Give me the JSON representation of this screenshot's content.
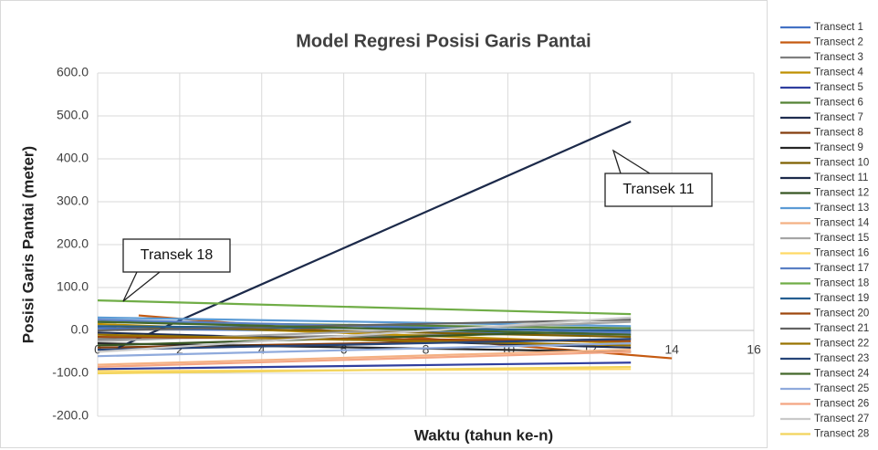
{
  "chart_data": {
    "type": "line",
    "title": "Model Regresi Posisi Garis Pantai",
    "x_label": "Waktu (tahun ke-n)",
    "y_label": "Posisi Garis Pantai (meter)",
    "annotations": [
      "Transek 11",
      "Transek 18"
    ],
    "xlim": [
      0,
      16
    ],
    "xticks": [
      0,
      2,
      4,
      6,
      8,
      10,
      12,
      14,
      16
    ],
    "ylim": [
      -200,
      600
    ],
    "yticks": [
      {
        "value": -200,
        "label": "-200.0"
      },
      {
        "value": -100,
        "label": "-100.0"
      },
      {
        "value": 0,
        "label": "0.0"
      },
      {
        "value": 100,
        "label": "100.0"
      },
      {
        "value": 200,
        "label": "200.0"
      },
      {
        "value": 300,
        "label": "300.0"
      },
      {
        "value": 400,
        "label": "400.0"
      },
      {
        "value": 500,
        "label": "500.0"
      },
      {
        "value": 600,
        "label": "600.0"
      }
    ],
    "grid": true,
    "legend": "right",
    "series": [
      {
        "name": "Transect 1",
        "color": "#4472c4",
        "x": [
          0,
          13
        ],
        "values": [
          5,
          -10
        ]
      },
      {
        "name": "Transect 2",
        "color": "#c55a11",
        "x": [
          1,
          14
        ],
        "values": [
          35,
          -65
        ]
      },
      {
        "name": "Transect 3",
        "color": "#7f7f7f",
        "x": [
          0,
          13
        ],
        "values": [
          -20,
          -5
        ]
      },
      {
        "name": "Transect 4",
        "color": "#bf9000",
        "x": [
          0,
          13
        ],
        "values": [
          15,
          -30
        ]
      },
      {
        "name": "Transect 5",
        "color": "#2f3e9e",
        "x": [
          0,
          13
        ],
        "values": [
          -90,
          -75
        ]
      },
      {
        "name": "Transect 6",
        "color": "#548235",
        "x": [
          0,
          13
        ],
        "values": [
          20,
          5
        ]
      },
      {
        "name": "Transect 7",
        "color": "#1f2d50",
        "x": [
          0,
          13
        ],
        "values": [
          -5,
          -40
        ]
      },
      {
        "name": "Transect 8",
        "color": "#843c0c",
        "x": [
          0,
          13
        ],
        "values": [
          -40,
          -20
        ]
      },
      {
        "name": "Transect 9",
        "color": "#262626",
        "x": [
          0,
          13
        ],
        "values": [
          -30,
          -50
        ]
      },
      {
        "name": "Transect 10",
        "color": "#7f6000",
        "x": [
          0,
          13
        ],
        "values": [
          10,
          -15
        ]
      },
      {
        "name": "Transect 11",
        "color": "#1c2a4a",
        "x": [
          0.5,
          13
        ],
        "values": [
          -40,
          487
        ]
      },
      {
        "name": "Transect 12",
        "color": "#375623",
        "x": [
          0,
          13
        ],
        "values": [
          -35,
          0
        ]
      },
      {
        "name": "Transect 13",
        "color": "#5b9bd5",
        "x": [
          0,
          13
        ],
        "values": [
          30,
          10
        ]
      },
      {
        "name": "Transect 14",
        "color": "#f4b183",
        "x": [
          0,
          13
        ],
        "values": [
          -80,
          -45
        ]
      },
      {
        "name": "Transect 15",
        "color": "#a5a5a5",
        "x": [
          0,
          13
        ],
        "values": [
          -25,
          20
        ]
      },
      {
        "name": "Transect 16",
        "color": "#ffd966",
        "x": [
          0,
          13
        ],
        "values": [
          -95,
          -90
        ]
      },
      {
        "name": "Transect 17",
        "color": "#5a7fc4",
        "x": [
          0,
          13
        ],
        "values": [
          25,
          -5
        ]
      },
      {
        "name": "Transect 18",
        "color": "#70ad47",
        "x": [
          0,
          13
        ],
        "values": [
          70,
          38
        ]
      },
      {
        "name": "Transect 19",
        "color": "#255e91",
        "x": [
          0,
          13
        ],
        "values": [
          10,
          0
        ]
      },
      {
        "name": "Transect 20",
        "color": "#9e480e",
        "x": [
          0,
          13
        ],
        "values": [
          -15,
          -25
        ]
      },
      {
        "name": "Transect 21",
        "color": "#636363",
        "x": [
          0,
          13
        ],
        "values": [
          0,
          25
        ]
      },
      {
        "name": "Transect 22",
        "color": "#997300",
        "x": [
          0,
          13
        ],
        "values": [
          -10,
          -35
        ]
      },
      {
        "name": "Transect 23",
        "color": "#264478",
        "x": [
          0,
          13
        ],
        "values": [
          -45,
          -20
        ]
      },
      {
        "name": "Transect 24",
        "color": "#43682b",
        "x": [
          0,
          13
        ],
        "values": [
          20,
          -10
        ]
      },
      {
        "name": "Transect 25",
        "color": "#8faadc",
        "x": [
          0,
          13
        ],
        "values": [
          -60,
          -30
        ]
      },
      {
        "name": "Transect 26",
        "color": "#f4a582",
        "x": [
          0,
          13
        ],
        "values": [
          -85,
          -50
        ]
      },
      {
        "name": "Transect 27",
        "color": "#c9c9c9",
        "x": [
          0,
          13
        ],
        "values": [
          -50,
          30
        ]
      },
      {
        "name": "Transect 28",
        "color": "#f2d45c",
        "x": [
          0,
          13
        ],
        "values": [
          -100,
          -85
        ]
      }
    ]
  }
}
